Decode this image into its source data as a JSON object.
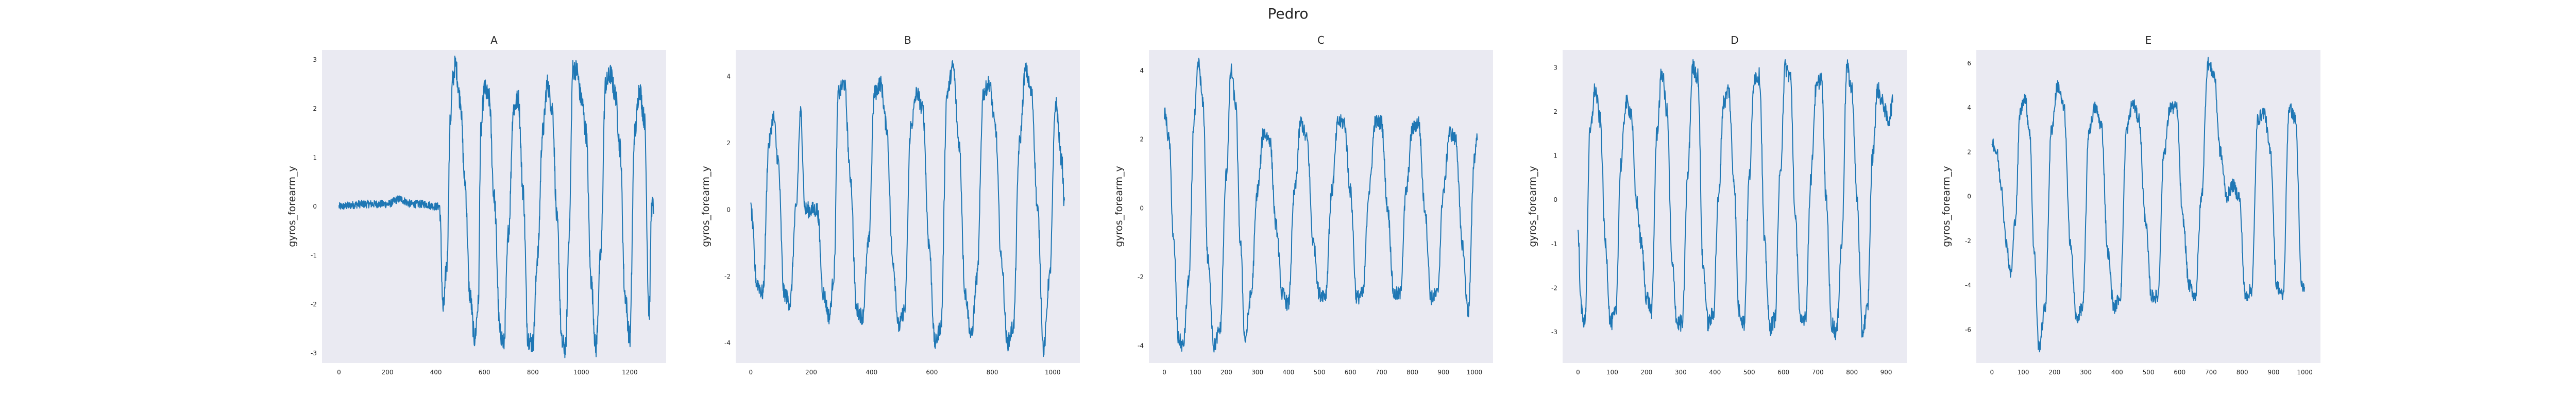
{
  "figure": {
    "title": "Pedro",
    "colors": {
      "background": "#eaeaf2",
      "line": "#1f77b4",
      "text": "#262626"
    }
  },
  "chart_data": [
    {
      "type": "line",
      "title": "A",
      "xlabel": "",
      "ylabel": "gyros_forearm_y",
      "xlim": [
        -70,
        1350
      ],
      "ylim": [
        -3.2,
        3.2
      ],
      "xticks": [
        0,
        200,
        400,
        600,
        800,
        1000,
        1200
      ],
      "yticks": [
        -3,
        -2,
        -1,
        0,
        1,
        2,
        3
      ],
      "grid": false,
      "n_points": 1300,
      "segments": [
        {
          "x": [
            0,
            100,
            200,
            250,
            300,
            350,
            400,
            415
          ],
          "y": [
            0,
            0.05,
            0.05,
            0.15,
            0.05,
            0.05,
            0.0,
            0.0
          ],
          "shape": "noise",
          "amp": 0.08
        },
        {
          "x": [
            415,
            430,
            445,
            460,
            470,
            480,
            500,
            520,
            540,
            560,
            575,
            585,
            600,
            620,
            640,
            665,
            680,
            700,
            720,
            740,
            760,
            780,
            800,
            820,
            840,
            860,
            880,
            900,
            920,
            935,
            950,
            965,
            980,
            1000,
            1020,
            1040,
            1060,
            1080,
            1100,
            1120,
            1140,
            1160,
            1180,
            1200,
            1220,
            1240,
            1260,
            1280,
            1290
          ],
          "y": [
            0.0,
            -2.1,
            -1.2,
            1.8,
            2.6,
            2.9,
            2.2,
            0.5,
            -1.8,
            -2.7,
            -2.0,
            1.5,
            2.4,
            2.2,
            0.2,
            -2.6,
            -2.8,
            -0.5,
            2.0,
            2.2,
            0.3,
            -2.7,
            -2.8,
            -1.0,
            1.5,
            2.5,
            2.0,
            -0.3,
            -2.8,
            -2.9,
            -0.5,
            2.8,
            2.8,
            2.2,
            1.5,
            -1.5,
            -2.9,
            -1.0,
            2.5,
            2.7,
            2.3,
            1.2,
            -1.8,
            -2.7,
            1.5,
            2.4,
            1.8,
            -2.2,
            0.0
          ],
          "shape": "smooth",
          "amp": 0.22
        }
      ]
    },
    {
      "type": "line",
      "title": "B",
      "xlabel": "",
      "ylabel": "gyros_forearm_y",
      "xlim": [
        -50,
        1090
      ],
      "ylim": [
        -4.6,
        4.8
      ],
      "xticks": [
        0,
        200,
        400,
        600,
        800,
        1000
      ],
      "yticks": [
        -4,
        -2,
        0,
        2,
        4
      ],
      "grid": false,
      "n_points": 1040,
      "segments": [
        {
          "x": [
            0,
            20,
            40,
            60,
            75,
            90,
            110,
            130,
            150,
            165,
            180,
            200,
            220,
            240,
            260,
            275,
            290,
            310,
            330,
            350,
            370,
            390,
            410,
            430,
            450,
            470,
            490,
            510,
            530,
            550,
            570,
            590,
            610,
            630,
            650,
            670,
            690,
            710,
            730,
            750,
            770,
            790,
            810,
            830,
            850,
            870,
            890,
            910,
            930,
            950,
            970,
            990,
            1010,
            1030,
            1040
          ],
          "y": [
            0,
            -2.2,
            -2.5,
            2.0,
            2.8,
            1.5,
            -2.5,
            -2.8,
            0.0,
            2.9,
            0.0,
            0.0,
            0.0,
            -2.5,
            -3.2,
            -2.0,
            3.5,
            3.8,
            1.0,
            -3.0,
            -3.2,
            -1.0,
            3.5,
            3.8,
            2.5,
            -1.5,
            -3.5,
            -3.0,
            2.5,
            3.5,
            3.0,
            -1.0,
            -4.0,
            -3.5,
            3.5,
            4.3,
            2.0,
            -2.5,
            -3.8,
            -2.0,
            3.5,
            3.8,
            2.5,
            -1.5,
            -4.0,
            -3.5,
            2.0,
            4.2,
            3.5,
            0.0,
            -4.2,
            -2.0,
            3.2,
            1.5,
            0.0
          ],
          "shape": "smooth",
          "amp": 0.25
        }
      ]
    },
    {
      "type": "line",
      "title": "C",
      "xlabel": "",
      "ylabel": "gyros_forearm_y",
      "xlim": [
        -50,
        1060
      ],
      "ylim": [
        -4.5,
        4.6
      ],
      "xticks": [
        0,
        100,
        200,
        300,
        400,
        500,
        600,
        700,
        800,
        900,
        1000
      ],
      "yticks": [
        -4,
        -2,
        0,
        2,
        4
      ],
      "grid": false,
      "n_points": 1010,
      "segments": [
        {
          "x": [
            0,
            15,
            30,
            45,
            60,
            80,
            95,
            110,
            125,
            140,
            160,
            180,
            200,
            215,
            230,
            245,
            260,
            280,
            300,
            320,
            340,
            360,
            380,
            400,
            420,
            440,
            460,
            480,
            500,
            520,
            540,
            560,
            580,
            600,
            620,
            640,
            660,
            680,
            700,
            720,
            740,
            760,
            780,
            800,
            820,
            840,
            860,
            880,
            900,
            920,
            940,
            960,
            980,
            1000,
            1010
          ],
          "y": [
            2.8,
            2.0,
            -1.0,
            -3.8,
            -4.0,
            -2.0,
            2.5,
            4.2,
            3.0,
            -1.5,
            -4.0,
            -3.5,
            1.0,
            4.0,
            3.0,
            -1.0,
            -3.8,
            -2.5,
            0.5,
            2.2,
            2.0,
            -0.5,
            -2.5,
            -2.8,
            0.5,
            2.5,
            2.0,
            -1.0,
            -2.5,
            -2.5,
            0.5,
            2.5,
            2.5,
            0.5,
            -2.6,
            -2.5,
            0.5,
            2.5,
            2.5,
            0.0,
            -2.5,
            -2.5,
            0.5,
            2.3,
            2.5,
            0.0,
            -2.6,
            -2.5,
            0.5,
            2.2,
            2.0,
            -1.0,
            -3.0,
            1.5,
            2.2
          ],
          "shape": "smooth",
          "amp": 0.22
        }
      ]
    },
    {
      "type": "line",
      "title": "D",
      "xlabel": "",
      "ylabel": "gyros_forearm_y",
      "xlim": [
        -45,
        960
      ],
      "ylim": [
        -3.7,
        3.4
      ],
      "xticks": [
        0,
        100,
        200,
        300,
        400,
        500,
        600,
        700,
        800,
        900
      ],
      "yticks": [
        -3,
        -2,
        -1,
        0,
        1,
        2,
        3
      ],
      "grid": false,
      "n_points": 920,
      "segments": [
        {
          "x": [
            0,
            10,
            20,
            35,
            50,
            65,
            80,
            95,
            110,
            125,
            140,
            155,
            170,
            185,
            200,
            215,
            230,
            245,
            260,
            275,
            290,
            305,
            320,
            335,
            350,
            365,
            380,
            395,
            410,
            425,
            440,
            455,
            470,
            485,
            500,
            515,
            530,
            545,
            560,
            575,
            590,
            605,
            620,
            635,
            650,
            665,
            680,
            695,
            710,
            725,
            740,
            755,
            770,
            785,
            800,
            815,
            830,
            845,
            860,
            875,
            890,
            905,
            920
          ],
          "y": [
            -0.8,
            -2.5,
            -2.8,
            1.5,
            2.5,
            1.8,
            -1.0,
            -2.8,
            -2.6,
            0.8,
            2.2,
            2.0,
            0.0,
            -1.0,
            -2.2,
            -2.5,
            1.5,
            2.9,
            2.0,
            -1.5,
            -2.8,
            -2.8,
            0.5,
            3.0,
            2.8,
            -1.5,
            -2.8,
            -2.6,
            0.0,
            2.2,
            2.5,
            0.5,
            -2.5,
            -2.8,
            0.5,
            2.8,
            2.8,
            -1.0,
            -2.9,
            -2.7,
            0.5,
            3.0,
            2.8,
            -0.5,
            -2.8,
            -2.6,
            0.5,
            2.5,
            2.8,
            0.0,
            -2.8,
            -3.0,
            -1.0,
            3.0,
            2.5,
            0.0,
            -3.0,
            -2.5,
            1.0,
            2.5,
            2.2,
            1.8,
            2.2
          ],
          "shape": "smooth",
          "amp": 0.2
        }
      ]
    },
    {
      "type": "line",
      "title": "E",
      "xlabel": "",
      "ylabel": "gyros_forearm_y",
      "xlim": [
        -50,
        1050
      ],
      "ylim": [
        -7.5,
        6.6
      ],
      "xticks": [
        0,
        100,
        200,
        300,
        400,
        500,
        600,
        700,
        800,
        900,
        1000
      ],
      "yticks": [
        -6,
        -4,
        -2,
        0,
        2,
        4,
        6
      ],
      "grid": false,
      "n_points": 1000,
      "segments": [
        {
          "x": [
            0,
            15,
            30,
            45,
            60,
            75,
            90,
            105,
            120,
            135,
            150,
            170,
            190,
            210,
            230,
            250,
            270,
            290,
            310,
            330,
            350,
            370,
            390,
            410,
            430,
            450,
            470,
            490,
            510,
            530,
            550,
            570,
            590,
            610,
            630,
            650,
            670,
            690,
            710,
            730,
            750,
            770,
            790,
            810,
            830,
            850,
            870,
            890,
            910,
            930,
            950,
            970,
            990,
            1000
          ],
          "y": [
            2.5,
            2.0,
            0.5,
            -2.0,
            -3.5,
            -1.0,
            3.8,
            4.5,
            3.0,
            -2.5,
            -6.8,
            -5.0,
            3.0,
            5.0,
            4.0,
            -2.0,
            -5.5,
            -5.0,
            3.0,
            4.0,
            3.2,
            -2.5,
            -5.0,
            -4.5,
            3.0,
            4.2,
            3.5,
            -1.0,
            -4.5,
            -4.5,
            2.0,
            4.0,
            4.0,
            -1.0,
            -4.0,
            -4.5,
            0.0,
            6.0,
            5.5,
            2.0,
            0.0,
            0.5,
            0.0,
            -4.5,
            -4.2,
            3.5,
            3.8,
            2.0,
            -4.0,
            -4.5,
            4.0,
            3.5,
            -4.0,
            -4.2
          ],
          "shape": "smooth",
          "amp": 0.3
        }
      ]
    }
  ]
}
